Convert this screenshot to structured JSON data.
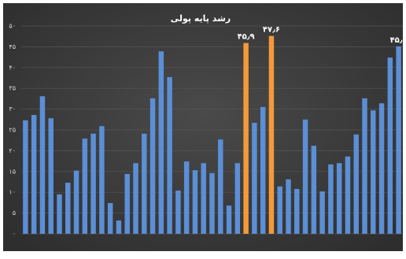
{
  "chart_data": {
    "type": "bar",
    "title": "رشد پایه پولی",
    "categories": [
      null,
      null,
      null,
      null,
      null,
      null,
      null,
      null,
      null,
      null,
      null,
      null,
      null,
      null,
      null,
      null,
      null,
      null,
      null,
      null,
      null,
      null,
      null,
      null,
      null,
      null,
      null,
      null,
      null,
      null,
      null,
      null,
      null,
      null,
      null,
      null,
      null,
      null,
      null,
      null,
      null,
      null,
      null,
      null,
      null
    ],
    "values": [
      27.3,
      28.6,
      33.1,
      27.8,
      9.5,
      12.3,
      15.2,
      22.9,
      24.1,
      25.9,
      7.4,
      3.2,
      14.4,
      17.0,
      24.1,
      32.6,
      43.9,
      37.7,
      10.4,
      17.4,
      15.3,
      17.0,
      14.6,
      22.7,
      6.8,
      17.0,
      45.9,
      26.7,
      30.5,
      47.6,
      11.4,
      13.1,
      10.8,
      27.5,
      21.2,
      10.2,
      16.7,
      17.0,
      18.6,
      23.9,
      32.6,
      29.7,
      31.4,
      42.4,
      45.1
    ],
    "value_labels": [
      null,
      null,
      null,
      null,
      null,
      null,
      null,
      null,
      null,
      null,
      null,
      null,
      null,
      null,
      null,
      null,
      null,
      null,
      null,
      null,
      null,
      null,
      null,
      null,
      null,
      null,
      "۴۵٫۹",
      null,
      null,
      "۴۷٫۶",
      null,
      null,
      null,
      null,
      null,
      null,
      null,
      null,
      null,
      null,
      null,
      null,
      null,
      null,
      "۴۵٫۱"
    ],
    "colors": [
      "#5b8fd6",
      "#5b8fd6",
      "#5b8fd6",
      "#5b8fd6",
      "#5b8fd6",
      "#5b8fd6",
      "#5b8fd6",
      "#5b8fd6",
      "#5b8fd6",
      "#5b8fd6",
      "#5b8fd6",
      "#5b8fd6",
      "#5b8fd6",
      "#5b8fd6",
      "#5b8fd6",
      "#5b8fd6",
      "#5b8fd6",
      "#5b8fd6",
      "#5b8fd6",
      "#5b8fd6",
      "#5b8fd6",
      "#5b8fd6",
      "#5b8fd6",
      "#5b8fd6",
      "#5b8fd6",
      "#5b8fd6",
      "#f39a3a",
      "#5b8fd6",
      "#5b8fd6",
      "#f39a3a",
      "#5b8fd6",
      "#5b8fd6",
      "#5b8fd6",
      "#5b8fd6",
      "#5b8fd6",
      "#5b8fd6",
      "#5b8fd6",
      "#5b8fd6",
      "#5b8fd6",
      "#5b8fd6",
      "#5b8fd6",
      "#5b8fd6",
      "#5b8fd6",
      "#5b8fd6",
      "#5b8fd6"
    ],
    "ylim": [
      0,
      50
    ],
    "yticks": [
      {
        "value": 0,
        "label": "۰"
      },
      {
        "value": 5,
        "label": "۵"
      },
      {
        "value": 10,
        "label": "۱۰"
      },
      {
        "value": 15,
        "label": "۱۵"
      },
      {
        "value": 20,
        "label": "۲۰"
      },
      {
        "value": 25,
        "label": "۲۵"
      },
      {
        "value": 30,
        "label": "۳۰"
      },
      {
        "value": 35,
        "label": "۳۵"
      },
      {
        "value": 40,
        "label": "۴۰"
      },
      {
        "value": 45,
        "label": "۴۵"
      },
      {
        "value": 50,
        "label": "۵۰"
      }
    ],
    "grid": true
  }
}
